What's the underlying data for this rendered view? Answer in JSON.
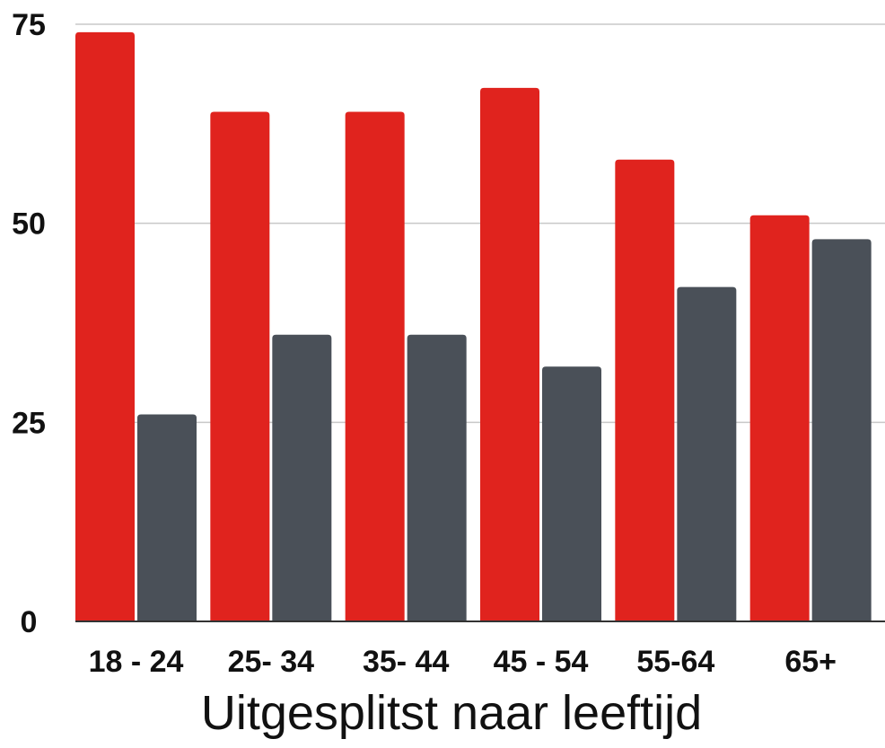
{
  "chart_data": {
    "type": "bar",
    "title": "",
    "xlabel": "Uitgesplitst naar leeftijd",
    "ylabel": "",
    "categories": [
      "18 - 24",
      "25- 34",
      "35- 44",
      "45 - 54",
      "55-64",
      "65+"
    ],
    "series": [
      {
        "color": "#e0231e",
        "values": [
          74,
          64,
          64,
          67,
          58,
          51
        ]
      },
      {
        "color": "#4a5058",
        "values": [
          26,
          36,
          36,
          32,
          42,
          48
        ]
      }
    ],
    "ylim": [
      0,
      75
    ],
    "yticks": [
      "0",
      "25",
      "50",
      "75"
    ],
    "grid": true,
    "legend": "none"
  }
}
